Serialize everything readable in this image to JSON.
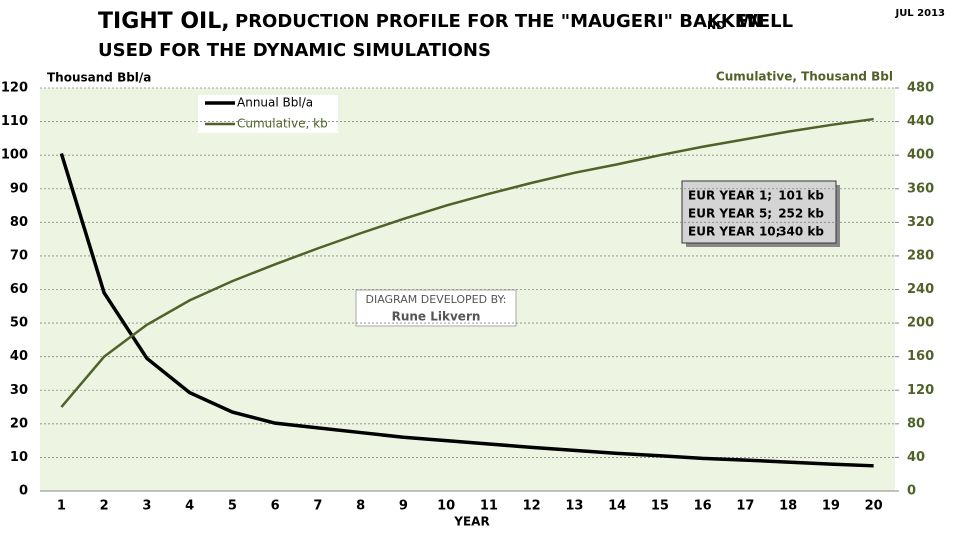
{
  "chart_data": {
    "type": "line",
    "title": {
      "lead": "TIGHT OIL,",
      "main": "PRODUCTION PROFILE FOR THE \"MAUGERI\" BAKKEN",
      "sub": "ND",
      "tail": "WELL",
      "line2": "USED FOR THE DYNAMIC SIMULATIONS"
    },
    "date": "JUL 2013",
    "y_label": "Thousand Bbl/a",
    "y2_label": "Cumulative, Thousand Bbl",
    "x_label": "YEAR",
    "categories": [
      "1",
      "2",
      "3",
      "4",
      "5",
      "6",
      "7",
      "8",
      "9",
      "10",
      "11",
      "12",
      "13",
      "14",
      "15",
      "16",
      "17",
      "18",
      "19",
      "20"
    ],
    "series": [
      {
        "name": "Annual Bbl/a",
        "color": "#000000",
        "values": [
          100.5,
          59,
          39.5,
          29.3,
          23.5,
          20.2,
          18.8,
          17.4,
          16,
          15,
          14,
          13,
          12.1,
          11.2,
          10.5,
          9.7,
          9.2,
          8.6,
          8,
          7.5
        ]
      },
      {
        "name": "Cumulative, kb",
        "color": "#4f6228",
        "axis": "y2",
        "values": [
          100,
          160,
          198,
          227,
          250,
          270,
          289,
          307,
          324,
          340,
          354,
          367,
          379,
          389,
          400,
          410,
          419,
          428,
          436,
          443
        ]
      }
    ],
    "ylim": [
      0,
      120
    ],
    "yticks": [
      0,
      10,
      20,
      30,
      40,
      50,
      60,
      70,
      80,
      90,
      100,
      110,
      120
    ],
    "y2lim": [
      0,
      480
    ],
    "y2ticks": [
      0,
      40,
      80,
      120,
      160,
      200,
      240,
      280,
      320,
      360,
      400,
      440,
      480
    ],
    "grid": true,
    "annotations": {
      "eur": [
        [
          "EUR YEAR 1;",
          "101 kb"
        ],
        [
          "EUR YEAR   5;",
          "252 kb"
        ],
        [
          "EUR YEAR 10;",
          "340 kb"
        ]
      ],
      "credit": [
        "DIAGRAM DEVELOPED BY:",
        "Rune Likvern"
      ]
    }
  }
}
